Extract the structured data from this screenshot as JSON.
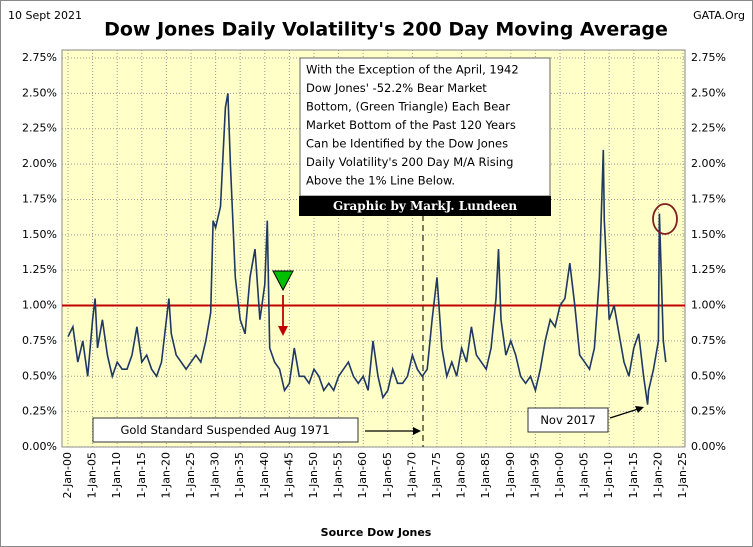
{
  "chart_data": {
    "type": "line",
    "title": "Dow Jones Daily Volatility's 200 Day Moving Average",
    "date": "10 Sept 2021",
    "site": "GATA.Org",
    "xlabel": "Source Dow Jones",
    "note_lines": [
      "With the Exception of the April, 1942",
      "Dow Jones' -52.2% Bear Market",
      "Bottom, (Green Triangle) Each Bear",
      "Market Bottom of the Past 120 Years",
      "Can be Identified by the Dow Jones",
      "Daily Volatility's 200  Day M/A Rising",
      "Above the 1% Line Below."
    ],
    "credit": "Graphic by MarkJ. Lundeen",
    "gold_note": "Gold Standard Suspended Aug 1971",
    "nov_note": "Nov 2017",
    "threshold": 1,
    "threshold_color": "#c00000",
    "xlim": [
      0,
      125
    ],
    "xticks": [
      {
        "value": 0,
        "label": "2-Jan-00"
      },
      {
        "value": 5,
        "label": "1-Jan-05"
      },
      {
        "value": 10,
        "label": "1-Jan-10"
      },
      {
        "value": 15,
        "label": "1-Jan-15"
      },
      {
        "value": 20,
        "label": "1-Jan-20"
      },
      {
        "value": 25,
        "label": "1-Jan-25"
      },
      {
        "value": 30,
        "label": "1-Jan-30"
      },
      {
        "value": 35,
        "label": "1-Jan-35"
      },
      {
        "value": 40,
        "label": "1-Jan-40"
      },
      {
        "value": 45,
        "label": "1-Jan-45"
      },
      {
        "value": 50,
        "label": "1-Jan-50"
      },
      {
        "value": 55,
        "label": "1-Jan-55"
      },
      {
        "value": 60,
        "label": "1-Jan-60"
      },
      {
        "value": 65,
        "label": "1-Jan-65"
      },
      {
        "value": 70,
        "label": "1-Jan-70"
      },
      {
        "value": 75,
        "label": "1-Jan-75"
      },
      {
        "value": 80,
        "label": "1-Jan-80"
      },
      {
        "value": 85,
        "label": "1-Jan-85"
      },
      {
        "value": 90,
        "label": "1-Jan-90"
      },
      {
        "value": 95,
        "label": "1-Jan-95"
      },
      {
        "value": 100,
        "label": "1-Jan-00"
      },
      {
        "value": 105,
        "label": "1-Jan-05"
      },
      {
        "value": 110,
        "label": "1-Jan-10"
      },
      {
        "value": 115,
        "label": "1-Jan-15"
      },
      {
        "value": 120,
        "label": "1-Jan-20"
      },
      {
        "value": 125,
        "label": "1-Jan-25"
      }
    ],
    "ylim": [
      0,
      2.75
    ],
    "yticks": [
      {
        "value": 0,
        "label": "0.00%"
      },
      {
        "value": 0.25,
        "label": "0.25%"
      },
      {
        "value": 0.5,
        "label": "0.50%"
      },
      {
        "value": 0.75,
        "label": "0.75%"
      },
      {
        "value": 1,
        "label": "1.00%"
      },
      {
        "value": 1.25,
        "label": "1.25%"
      },
      {
        "value": 1.5,
        "label": "1.50%"
      },
      {
        "value": 1.75,
        "label": "1.75%"
      },
      {
        "value": 2,
        "label": "2.00%"
      },
      {
        "value": 2.25,
        "label": "2.25%"
      },
      {
        "value": 2.5,
        "label": "2.50%"
      },
      {
        "value": 2.75,
        "label": "2.75%"
      }
    ],
    "grid": true,
    "x": [
      0,
      1,
      2,
      3,
      4,
      5,
      5.5,
      6,
      7,
      8,
      9,
      10,
      11,
      12,
      13,
      14,
      15,
      16,
      17,
      18,
      19,
      20,
      20.5,
      21,
      22,
      23,
      24,
      25,
      26,
      27,
      28,
      29,
      29.5,
      30,
      31,
      32,
      32.5,
      33,
      34,
      35,
      36,
      37,
      38,
      39,
      40,
      40.5,
      41,
      42,
      43,
      44,
      45,
      46,
      47,
      48,
      49,
      50,
      51,
      52,
      53,
      54,
      55,
      56,
      57,
      58,
      59,
      60,
      61,
      62,
      63,
      64,
      65,
      66,
      67,
      68,
      69,
      70,
      71,
      72,
      73,
      74,
      75,
      76,
      77,
      78,
      79,
      80,
      81,
      82,
      83,
      84,
      85,
      86,
      87,
      87.5,
      88,
      89,
      90,
      91,
      92,
      93,
      94,
      95,
      96,
      97,
      98,
      99,
      100,
      101,
      102,
      103,
      104,
      105,
      106,
      107,
      108,
      108.8,
      109,
      110,
      111,
      112,
      113,
      114,
      115,
      116,
      117,
      117.8,
      118,
      119,
      120,
      120.2,
      121,
      121.5
    ],
    "series": [
      {
        "name": "Volatility 200 Day M/A",
        "color": "#1f3864",
        "values": [
          0.78,
          0.85,
          0.6,
          0.75,
          0.5,
          0.9,
          1.05,
          0.7,
          0.9,
          0.65,
          0.5,
          0.6,
          0.55,
          0.55,
          0.65,
          0.85,
          0.6,
          0.65,
          0.55,
          0.5,
          0.6,
          0.9,
          1.05,
          0.8,
          0.65,
          0.6,
          0.55,
          0.6,
          0.65,
          0.6,
          0.75,
          0.95,
          1.6,
          1.55,
          1.7,
          2.4,
          2.5,
          2.0,
          1.2,
          0.9,
          0.8,
          1.2,
          1.4,
          0.9,
          1.15,
          1.6,
          0.7,
          0.6,
          0.55,
          0.4,
          0.45,
          0.7,
          0.5,
          0.5,
          0.45,
          0.55,
          0.5,
          0.4,
          0.45,
          0.4,
          0.5,
          0.55,
          0.6,
          0.5,
          0.45,
          0.5,
          0.4,
          0.75,
          0.5,
          0.35,
          0.4,
          0.55,
          0.45,
          0.45,
          0.5,
          0.65,
          0.55,
          0.5,
          0.55,
          0.9,
          1.2,
          0.7,
          0.5,
          0.6,
          0.5,
          0.7,
          0.6,
          0.85,
          0.65,
          0.6,
          0.55,
          0.7,
          1.05,
          1.4,
          0.9,
          0.65,
          0.75,
          0.65,
          0.5,
          0.45,
          0.5,
          0.4,
          0.55,
          0.75,
          0.9,
          0.85,
          1.0,
          1.05,
          1.3,
          1.0,
          0.65,
          0.6,
          0.55,
          0.7,
          1.2,
          2.1,
          1.6,
          0.9,
          1.0,
          0.8,
          0.6,
          0.5,
          0.7,
          0.8,
          0.5,
          0.3,
          0.4,
          0.55,
          0.75,
          1.65,
          0.75,
          0.6
        ]
      }
    ]
  }
}
